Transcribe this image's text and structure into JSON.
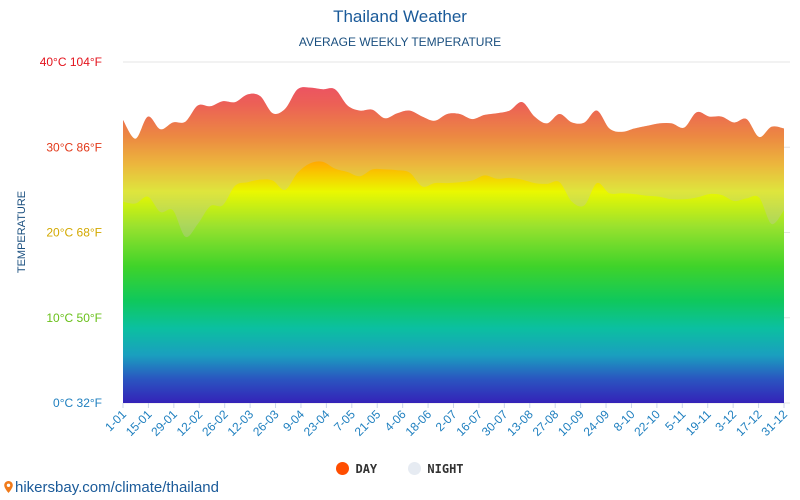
{
  "chart_data": {
    "type": "area",
    "title": "Thailand Weather",
    "subtitle": "AVERAGE WEEKLY TEMPERATURE",
    "ylabel": "TEMPERATURE",
    "ylim": [
      0,
      40
    ],
    "yticks": [
      {
        "value": 40,
        "label": "40°C 104°F",
        "color": "#e3131c"
      },
      {
        "value": 30,
        "label": "30°C 86°F",
        "color": "#e2391a"
      },
      {
        "value": 20,
        "label": "20°C 68°F",
        "color": "#d3a900"
      },
      {
        "value": 10,
        "label": "10°C 50°F",
        "color": "#69c01a"
      },
      {
        "value": 0,
        "label": "0°C 32°F",
        "color": "#1e7fbf"
      }
    ],
    "xtick_labels": [
      "1-01",
      "15-01",
      "29-01",
      "12-02",
      "26-02",
      "12-03",
      "26-03",
      "9-04",
      "23-04",
      "7-05",
      "21-05",
      "4-06",
      "18-06",
      "2-07",
      "16-07",
      "30-07",
      "13-08",
      "27-08",
      "10-09",
      "24-09",
      "8-10",
      "22-10",
      "5-11",
      "19-11",
      "3-12",
      "17-12",
      "31-12"
    ],
    "series": [
      {
        "name": "DAY",
        "color": "#ff4d00",
        "values": [
          33.2,
          31.0,
          33.6,
          32.1,
          32.9,
          33.0,
          34.9,
          34.8,
          35.4,
          35.3,
          36.2,
          36.0,
          34.0,
          34.5,
          36.8,
          37.0,
          36.8,
          36.8,
          34.9,
          34.3,
          34.4,
          33.4,
          34.0,
          34.3,
          33.6,
          33.1,
          33.9,
          33.9,
          33.3,
          33.8,
          34.0,
          34.3,
          35.3,
          33.6,
          32.8,
          33.9,
          32.9,
          32.9,
          34.3,
          32.2,
          31.8,
          32.2,
          32.5,
          32.8,
          32.8,
          32.3,
          34.1,
          33.6,
          33.6,
          32.9,
          33.3,
          31.2,
          32.4,
          32.2
        ]
      },
      {
        "name": "NIGHT",
        "color": "#e6ebf2",
        "values": [
          23.6,
          23.4,
          24.2,
          22.4,
          22.6,
          19.5,
          21.0,
          23.1,
          23.2,
          25.5,
          25.9,
          26.2,
          26.1,
          25.0,
          27.0,
          28.1,
          28.3,
          27.5,
          27.1,
          26.6,
          27.4,
          27.4,
          27.3,
          27.0,
          25.4,
          25.8,
          25.8,
          25.9,
          26.1,
          26.7,
          26.3,
          26.4,
          26.2,
          25.8,
          25.7,
          25.9,
          23.6,
          23.2,
          25.8,
          24.6,
          24.6,
          24.5,
          24.3,
          24.2,
          23.9,
          23.9,
          24.1,
          24.5,
          24.4,
          23.7,
          24.0,
          24.1,
          21.0,
          22.6
        ]
      }
    ],
    "legend": {
      "position": "bottom-center",
      "items": [
        {
          "label": "DAY",
          "color": "#ff4d00"
        },
        {
          "label": "NIGHT",
          "color": "#e6ebf2"
        }
      ]
    },
    "grid": true
  },
  "watermark": "hikersbay.com/climate/thailand"
}
